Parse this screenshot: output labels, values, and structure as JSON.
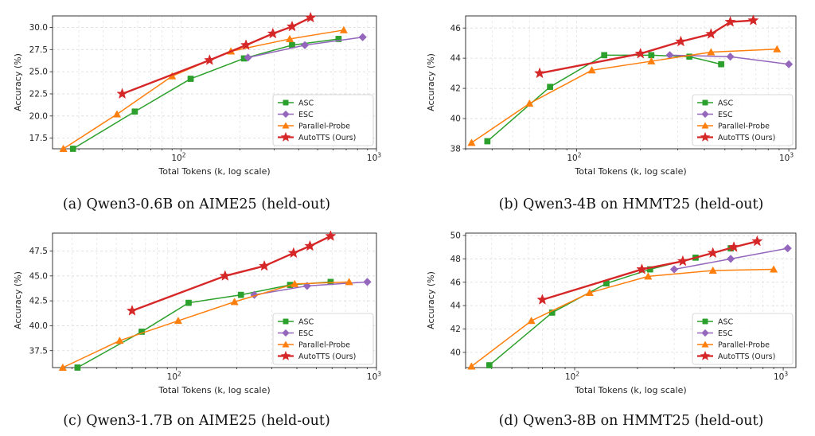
{
  "colors": {
    "ASC": "#2ca02c",
    "ESC": "#9467bd",
    "Parallel-Probe": "#ff7f0e",
    "AutoTTS (Ours)": "#d62728"
  },
  "chart_data": [
    {
      "type": "line",
      "caption": "(a) Qwen3-0.6B on AIME25 (held-out)",
      "xlabel": "Total Tokens (k, log scale)",
      "ylabel": "Accuracy (%)",
      "xscale": "log",
      "xlim": [
        22,
        1000
      ],
      "ylim": [
        16.3,
        31.3
      ],
      "xticks": [
        100,
        1000
      ],
      "xtick_labels": [
        "10",
        "10"
      ],
      "xtick_sups": [
        "2",
        "3"
      ],
      "yticks": [
        17.5,
        20.0,
        22.5,
        25.0,
        27.5,
        30.0
      ],
      "ytick_labels": [
        "17.5",
        "20.0",
        "22.5",
        "25.0",
        "27.5",
        "30.0"
      ],
      "grid": true,
      "legend": "bottom-right",
      "series": [
        {
          "name": "ASC",
          "marker": "square",
          "x": [
            28,
            58,
            112,
            210,
            370,
            640
          ],
          "y": [
            16.3,
            20.5,
            24.2,
            26.5,
            28.0,
            28.7
          ]
        },
        {
          "name": "ESC",
          "marker": "diamond",
          "x": [
            220,
            430,
            850
          ],
          "y": [
            26.6,
            28.0,
            28.9
          ]
        },
        {
          "name": "Parallel-Probe",
          "marker": "triangle",
          "x": [
            25,
            47,
            90,
            180,
            360,
            680
          ],
          "y": [
            16.3,
            20.2,
            24.5,
            27.3,
            28.7,
            29.7
          ]
        },
        {
          "name": "AutoTTS (Ours)",
          "marker": "star",
          "x": [
            50,
            140,
            215,
            295,
            370,
            460
          ],
          "y": [
            22.5,
            26.3,
            28.0,
            29.3,
            30.1,
            31.1
          ]
        }
      ]
    },
    {
      "type": "line",
      "caption": "(b) Qwen3-4B on HMMT25 (held-out)",
      "xlabel": "Total Tokens (k, log scale)",
      "ylabel": "Accuracy (%)",
      "xscale": "log",
      "xlim": [
        30,
        1080
      ],
      "ylim": [
        38,
        46.8
      ],
      "xticks": [
        100,
        1000
      ],
      "xtick_labels": [
        "10",
        "10"
      ],
      "xtick_sups": [
        "2",
        "3"
      ],
      "yticks": [
        38,
        40,
        42,
        44,
        46
      ],
      "ytick_labels": [
        "38",
        "40",
        "42",
        "44",
        "46"
      ],
      "grid": true,
      "legend": "bottom-right",
      "series": [
        {
          "name": "ASC",
          "marker": "square",
          "x": [
            38,
            75,
            135,
            225,
            340,
            480
          ],
          "y": [
            38.5,
            42.1,
            44.2,
            44.2,
            44.1,
            43.6
          ]
        },
        {
          "name": "ESC",
          "marker": "diamond",
          "x": [
            275,
            530,
            1000
          ],
          "y": [
            44.2,
            44.1,
            43.6
          ]
        },
        {
          "name": "Parallel-Probe",
          "marker": "triangle",
          "x": [
            32,
            60,
            118,
            225,
            430,
            880
          ],
          "y": [
            38.4,
            41.0,
            43.2,
            43.8,
            44.4,
            44.6
          ]
        },
        {
          "name": "AutoTTS (Ours)",
          "marker": "star",
          "x": [
            67,
            200,
            310,
            430,
            530,
            680
          ],
          "y": [
            43.0,
            44.3,
            45.1,
            45.6,
            46.4,
            46.5
          ]
        }
      ]
    },
    {
      "type": "line",
      "caption": "(c) Qwen3-1.7B on AIME25 (held-out)",
      "xlabel": "Total Tokens (k, log scale)",
      "ylabel": "Accuracy (%)",
      "xscale": "log",
      "xlim": [
        24,
        1000
      ],
      "ylim": [
        35.8,
        49.3
      ],
      "xticks": [
        100,
        1000
      ],
      "xtick_labels": [
        "10",
        "10"
      ],
      "xtick_sups": [
        "2",
        "3"
      ],
      "yticks": [
        37.5,
        40.0,
        42.5,
        45.0,
        47.5
      ],
      "ytick_labels": [
        "37.5",
        "40.0",
        "42.5",
        "45.0",
        "47.5"
      ],
      "grid": true,
      "legend": "bottom-right",
      "series": [
        {
          "name": "ASC",
          "marker": "square",
          "x": [
            32,
            67,
            115,
            210,
            370,
            590
          ],
          "y": [
            35.8,
            39.4,
            42.3,
            43.1,
            44.1,
            44.4
          ]
        },
        {
          "name": "ESC",
          "marker": "diamond",
          "x": [
            245,
            450,
            900
          ],
          "y": [
            43.1,
            44.0,
            44.4
          ]
        },
        {
          "name": "Parallel-Probe",
          "marker": "triangle",
          "x": [
            27,
            52,
            102,
            195,
            390,
            730
          ],
          "y": [
            35.8,
            38.5,
            40.5,
            42.4,
            44.2,
            44.4
          ]
        },
        {
          "name": "AutoTTS (Ours)",
          "marker": "star",
          "x": [
            60,
            175,
            275,
            385,
            465,
            590
          ],
          "y": [
            41.5,
            45.0,
            46.0,
            47.3,
            48.0,
            49.0
          ]
        }
      ]
    },
    {
      "type": "line",
      "caption": "(d) Qwen3-8B on HMMT25 (held-out)",
      "xlabel": "Total Tokens (k, log scale)",
      "ylabel": "Accuracy (%)",
      "xscale": "log",
      "xlim": [
        30,
        1150
      ],
      "ylim": [
        38.7,
        50.2
      ],
      "xticks": [
        100,
        1000
      ],
      "xtick_labels": [
        "10",
        "10"
      ],
      "xtick_sups": [
        "2",
        "3"
      ],
      "yticks": [
        40,
        42,
        44,
        46,
        48,
        50
      ],
      "ytick_labels": [
        "40",
        "42",
        "44",
        "46",
        "48",
        "50"
      ],
      "grid": true,
      "legend": "bottom-right",
      "series": [
        {
          "name": "ASC",
          "marker": "square",
          "x": [
            39,
            78,
            142,
            230,
            380,
            560
          ],
          "y": [
            38.9,
            43.4,
            45.9,
            47.1,
            48.1,
            48.9
          ]
        },
        {
          "name": "ESC",
          "marker": "diamond",
          "x": [
            300,
            560,
            1050
          ],
          "y": [
            47.1,
            48.0,
            48.9
          ]
        },
        {
          "name": "Parallel-Probe",
          "marker": "triangle",
          "x": [
            32,
            62,
            118,
            225,
            460,
            900
          ],
          "y": [
            38.8,
            42.7,
            45.1,
            46.5,
            47.0,
            47.1
          ]
        },
        {
          "name": "AutoTTS (Ours)",
          "marker": "star",
          "x": [
            70,
            210,
            330,
            460,
            580,
            750
          ],
          "y": [
            44.5,
            47.1,
            47.8,
            48.5,
            49.0,
            49.5
          ]
        }
      ]
    }
  ]
}
